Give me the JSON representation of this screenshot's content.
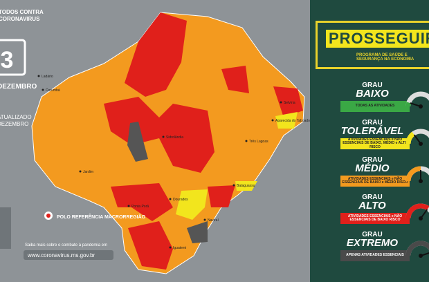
{
  "header": {
    "campaign_top": "TODOS CONTRA",
    "campaign_bottom": "CORONAVIRUS",
    "day": "3",
    "month": "DEZEMBRO",
    "updated": "ATUALIZADO",
    "updated_month": "DEZEMBRO"
  },
  "map": {
    "cities": [
      "Corumbá",
      "Ladário",
      "Três Lagoas",
      "Aparecida do Taboado",
      "Selvíria",
      "Sidrolândia",
      "Bataguassu",
      "Jardim",
      "Ponta Porã",
      "Dourados",
      "Naviraí",
      "Iguatemi"
    ],
    "polo_label": "POLO REFERÊNCIA MACRORREGIÃO"
  },
  "footer": {
    "info": "Saiba mais sobre o combate à pandemia em",
    "url": "www.coronavirus.ms.gov.br"
  },
  "program": {
    "title": "PROSSEGUIR",
    "subtitle": "PROGRAMA DE SAÚDE E SEGURANÇA NA ECONOMIA"
  },
  "levels": [
    {
      "grau": "GRAU",
      "name": "BAIXO",
      "description": "TODAS AS ATIVIDADES",
      "color": "#3aa845"
    },
    {
      "grau": "GRAU",
      "name": "TOLERÁVEL",
      "description": "ATIVIDADES ESSENCIAIS e NÃO ESSENCIAIS DE BAIXO, MÉDIO e ALTO RISCO",
      "color": "#f2e51d"
    },
    {
      "grau": "GRAU",
      "name": "MÉDIO",
      "description": "ATIVIDADES ESSENCIAIS e NÃO ESSENCIAIS DE BAIXO e MÉDIO RISCO",
      "color": "#f39a1f"
    },
    {
      "grau": "GRAU",
      "name": "ALTO",
      "description": "ATIVIDADES ESSENCIAIS e NÃO ESSENCIAIS DE BAIXO RISCO",
      "color": "#e0201b"
    },
    {
      "grau": "GRAU",
      "name": "EXTREMO",
      "description": "APENAS ATIVIDADES ESSENCIAIS",
      "color": "#4a4a4a"
    }
  ]
}
